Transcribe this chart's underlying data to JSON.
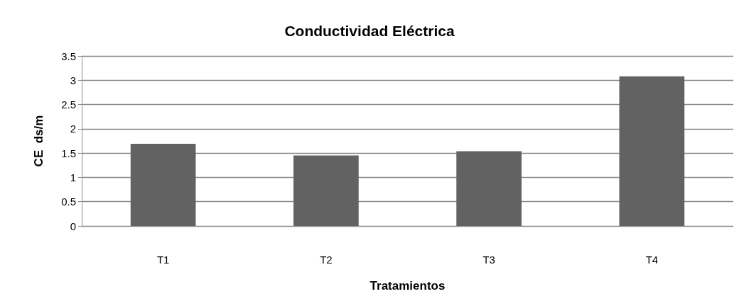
{
  "chart_data": {
    "type": "bar",
    "title": "Conductividad Eléctrica",
    "xlabel": "Tratamientos",
    "ylabel": "CE  ds/m",
    "categories": [
      "T1",
      "T2",
      "T3",
      "T4"
    ],
    "values": [
      1.69,
      1.45,
      1.54,
      3.08
    ],
    "color": "#626262",
    "ylim": [
      0,
      3.5
    ],
    "yticks": [
      0,
      0.5,
      1,
      1.5,
      2,
      2.5,
      3,
      3.5
    ],
    "grid": "y"
  }
}
